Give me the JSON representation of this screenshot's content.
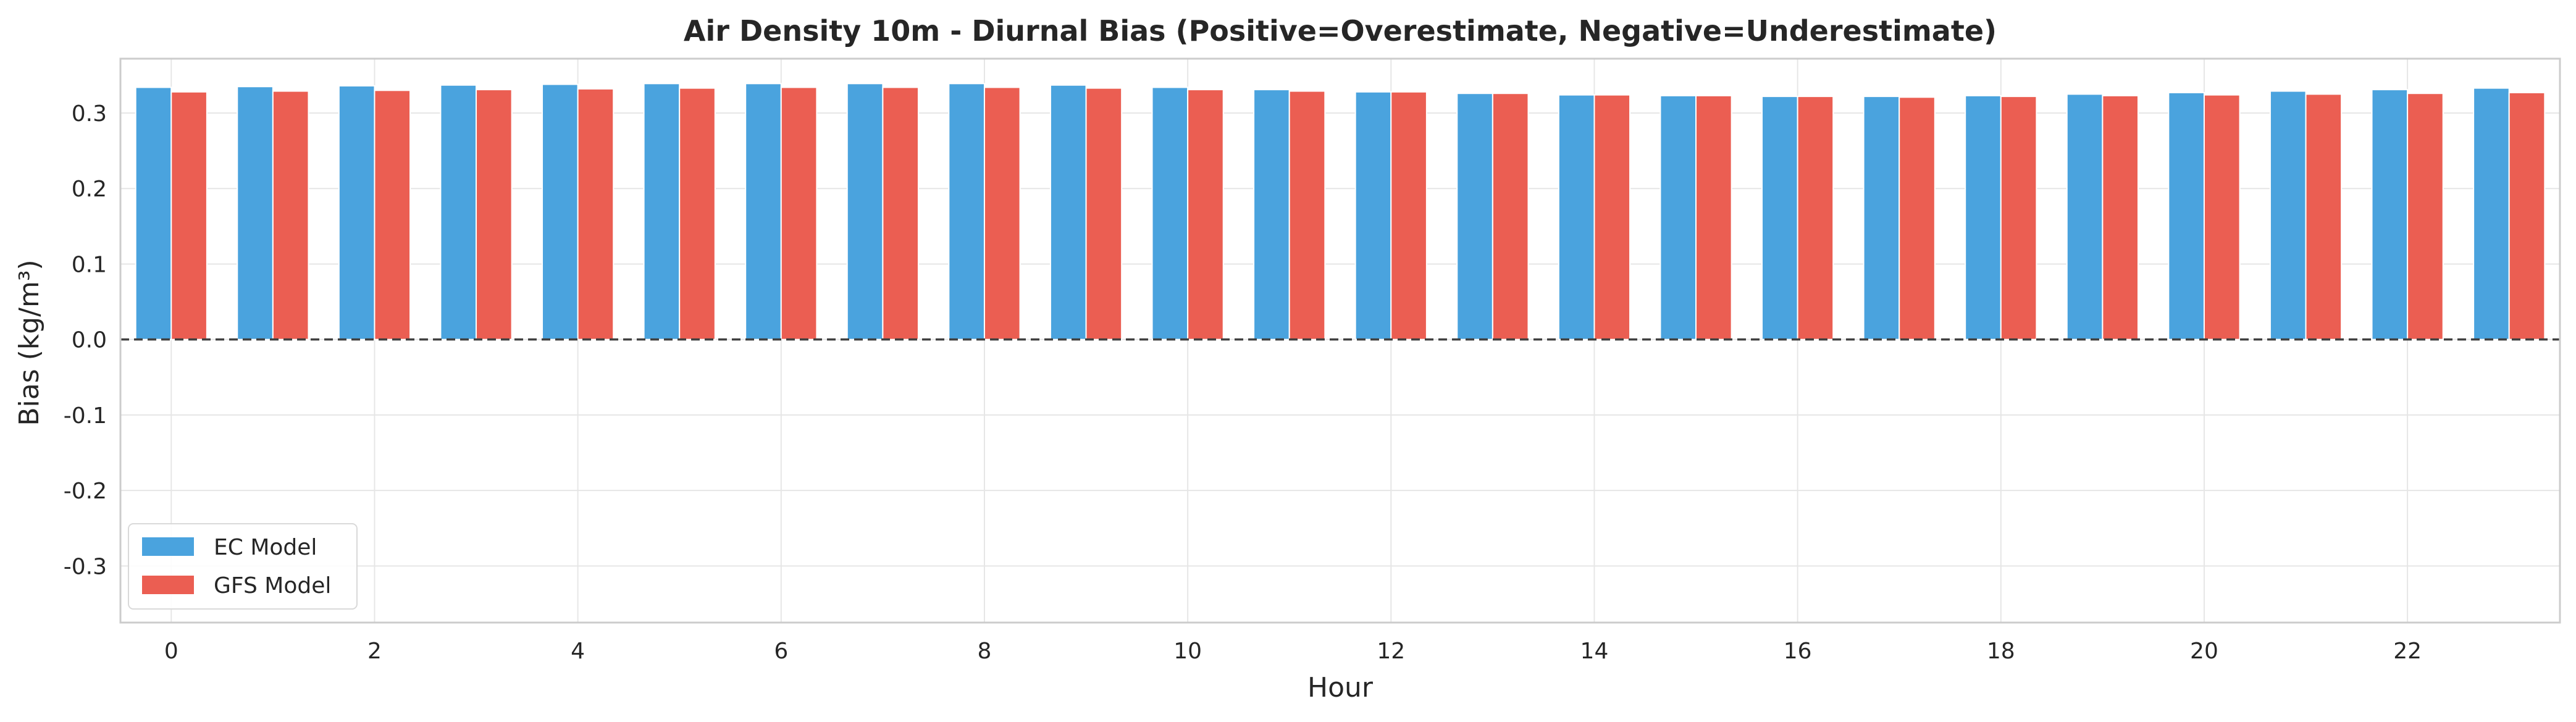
{
  "chart_data": {
    "type": "bar",
    "title": "Air Density 10m - Diurnal Bias (Positive=Overestimate, Negative=Underestimate)",
    "xlabel": "Hour",
    "ylabel": "Bias (kg/m³)",
    "categories": [
      0,
      1,
      2,
      3,
      4,
      5,
      6,
      7,
      8,
      9,
      10,
      11,
      12,
      13,
      14,
      15,
      16,
      17,
      18,
      19,
      20,
      21,
      22,
      23
    ],
    "x_ticks": [
      0,
      2,
      4,
      6,
      8,
      10,
      12,
      14,
      16,
      18,
      20,
      22
    ],
    "y_ticks": [
      0.3,
      0.2,
      0.1,
      0.0,
      -0.1,
      -0.2,
      -0.3
    ],
    "y_tick_labels": [
      "0.3",
      "0.2",
      "0.1",
      "0.0",
      "-0.1",
      "-0.2",
      "-0.3"
    ],
    "ylim": [
      -0.375,
      0.372
    ],
    "xlim": [
      -0.5,
      23.5
    ],
    "grid": true,
    "reference_line": 0.0,
    "legend_position": "lower-left",
    "series": [
      {
        "name": "EC Model",
        "color": "#4aa3de",
        "values": [
          0.334,
          0.335,
          0.336,
          0.337,
          0.338,
          0.339,
          0.339,
          0.339,
          0.339,
          0.337,
          0.334,
          0.331,
          0.328,
          0.326,
          0.324,
          0.323,
          0.322,
          0.322,
          0.323,
          0.325,
          0.327,
          0.329,
          0.331,
          0.333
        ]
      },
      {
        "name": "GFS Model",
        "color": "#eb5e52",
        "values": [
          0.328,
          0.329,
          0.33,
          0.331,
          0.332,
          0.333,
          0.334,
          0.334,
          0.334,
          0.333,
          0.331,
          0.329,
          0.328,
          0.326,
          0.324,
          0.323,
          0.322,
          0.321,
          0.322,
          0.323,
          0.324,
          0.325,
          0.326,
          0.327
        ]
      }
    ]
  }
}
